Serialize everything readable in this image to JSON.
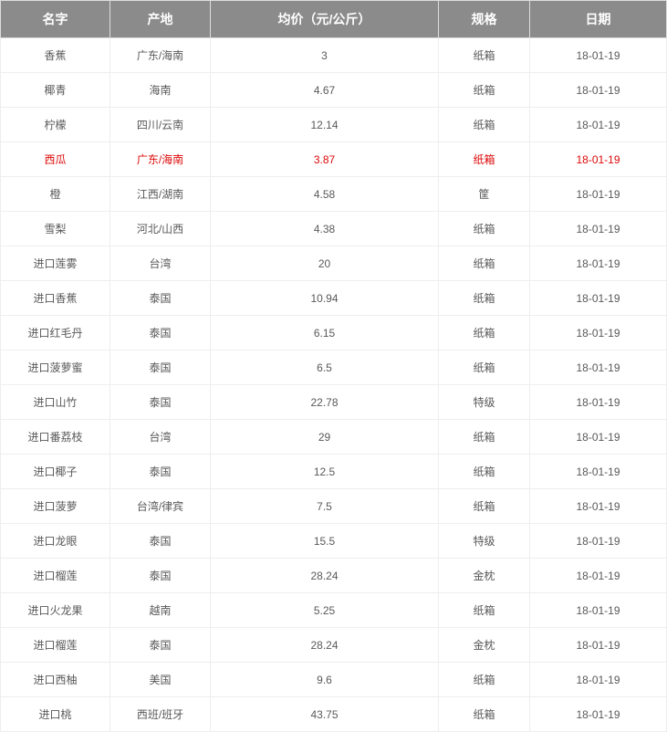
{
  "columns": [
    {
      "key": "name",
      "label": "名字"
    },
    {
      "key": "origin",
      "label": "产地"
    },
    {
      "key": "price",
      "label": "均价（元/公斤）"
    },
    {
      "key": "spec",
      "label": "规格"
    },
    {
      "key": "date",
      "label": "日期"
    }
  ],
  "rows": [
    {
      "name": "香蕉",
      "origin": "广东/海南",
      "price": "3",
      "spec": "纸箱",
      "date": "18-01-19",
      "highlight": false
    },
    {
      "name": "椰青",
      "origin": "海南",
      "price": "4.67",
      "spec": "纸箱",
      "date": "18-01-19",
      "highlight": false
    },
    {
      "name": "柠檬",
      "origin": "四川/云南",
      "price": "12.14",
      "spec": "纸箱",
      "date": "18-01-19",
      "highlight": false
    },
    {
      "name": "西瓜",
      "origin": "广东/海南",
      "price": "3.87",
      "spec": "纸箱",
      "date": "18-01-19",
      "highlight": true
    },
    {
      "name": "橙",
      "origin": "江西/湖南",
      "price": "4.58",
      "spec": "筐",
      "date": "18-01-19",
      "highlight": false
    },
    {
      "name": "雪梨",
      "origin": "河北/山西",
      "price": "4.38",
      "spec": "纸箱",
      "date": "18-01-19",
      "highlight": false
    },
    {
      "name": "进口莲雾",
      "origin": "台湾",
      "price": "20",
      "spec": "纸箱",
      "date": "18-01-19",
      "highlight": false
    },
    {
      "name": "进口香蕉",
      "origin": "泰国",
      "price": "10.94",
      "spec": "纸箱",
      "date": "18-01-19",
      "highlight": false
    },
    {
      "name": "进口红毛丹",
      "origin": "泰国",
      "price": "6.15",
      "spec": "纸箱",
      "date": "18-01-19",
      "highlight": false
    },
    {
      "name": "进口菠萝蜜",
      "origin": "泰国",
      "price": "6.5",
      "spec": "纸箱",
      "date": "18-01-19",
      "highlight": false
    },
    {
      "name": "进口山竹",
      "origin": "泰国",
      "price": "22.78",
      "spec": "特级",
      "date": "18-01-19",
      "highlight": false
    },
    {
      "name": "进口番荔枝",
      "origin": "台湾",
      "price": "29",
      "spec": "纸箱",
      "date": "18-01-19",
      "highlight": false
    },
    {
      "name": "进口椰子",
      "origin": "泰国",
      "price": "12.5",
      "spec": "纸箱",
      "date": "18-01-19",
      "highlight": false
    },
    {
      "name": "进口菠萝",
      "origin": "台湾/律宾",
      "price": "7.5",
      "spec": "纸箱",
      "date": "18-01-19",
      "highlight": false
    },
    {
      "name": "进口龙眼",
      "origin": "泰国",
      "price": "15.5",
      "spec": "特级",
      "date": "18-01-19",
      "highlight": false
    },
    {
      "name": "进口榴莲",
      "origin": "泰国",
      "price": "28.24",
      "spec": "金枕",
      "date": "18-01-19",
      "highlight": false
    },
    {
      "name": "进口火龙果",
      "origin": "越南",
      "price": "5.25",
      "spec": "纸箱",
      "date": "18-01-19",
      "highlight": false
    },
    {
      "name": "进口榴莲",
      "origin": "泰国",
      "price": "28.24",
      "spec": "金枕",
      "date": "18-01-19",
      "highlight": false
    },
    {
      "name": "进口西柚",
      "origin": "美国",
      "price": "9.6",
      "spec": "纸箱",
      "date": "18-01-19",
      "highlight": false
    },
    {
      "name": "进口桃",
      "origin": "西班/班牙",
      "price": "43.75",
      "spec": "纸箱",
      "date": "18-01-19",
      "highlight": false
    }
  ]
}
